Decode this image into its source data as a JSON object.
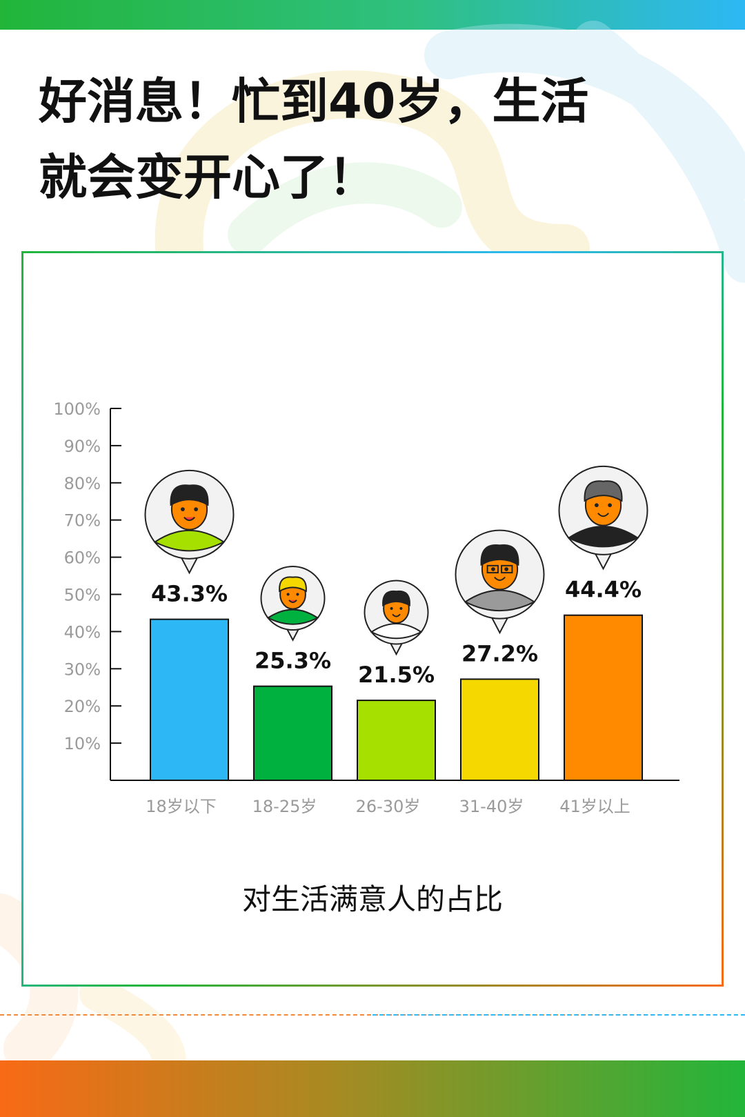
{
  "header": {
    "title_line1": "好消息！忙到40岁，生活",
    "title_line2": "就会变开心了！"
  },
  "colors": {
    "accent_green": "#22b53a",
    "accent_blue": "#2db8f5",
    "accent_orange": "#f86a16"
  },
  "chart_data": {
    "type": "bar",
    "title": "对生活满意人的占比",
    "xlabel": "",
    "ylabel": "",
    "ylim": [
      0,
      100
    ],
    "yticks": [
      "10%",
      "20%",
      "30%",
      "40%",
      "50%",
      "60%",
      "70%",
      "80%",
      "90%",
      "100%"
    ],
    "categories": [
      "18岁以下",
      "18-25岁",
      "26-30岁",
      "31-40岁",
      "41岁以上"
    ],
    "values": [
      43.3,
      25.3,
      21.5,
      27.2,
      44.4
    ],
    "value_labels": [
      "43.3%",
      "25.3%",
      "21.5%",
      "27.2%",
      "44.4%"
    ],
    "bar_colors": [
      "#2db8f5",
      "#00b140",
      "#a6e000",
      "#f5d800",
      "#ff8a00"
    ],
    "avatar_icons": [
      "boy-avatar-icon",
      "youth-avatar-icon",
      "young-adult-avatar-icon",
      "glasses-man-avatar-icon",
      "older-man-avatar-icon"
    ],
    "grid": false
  }
}
